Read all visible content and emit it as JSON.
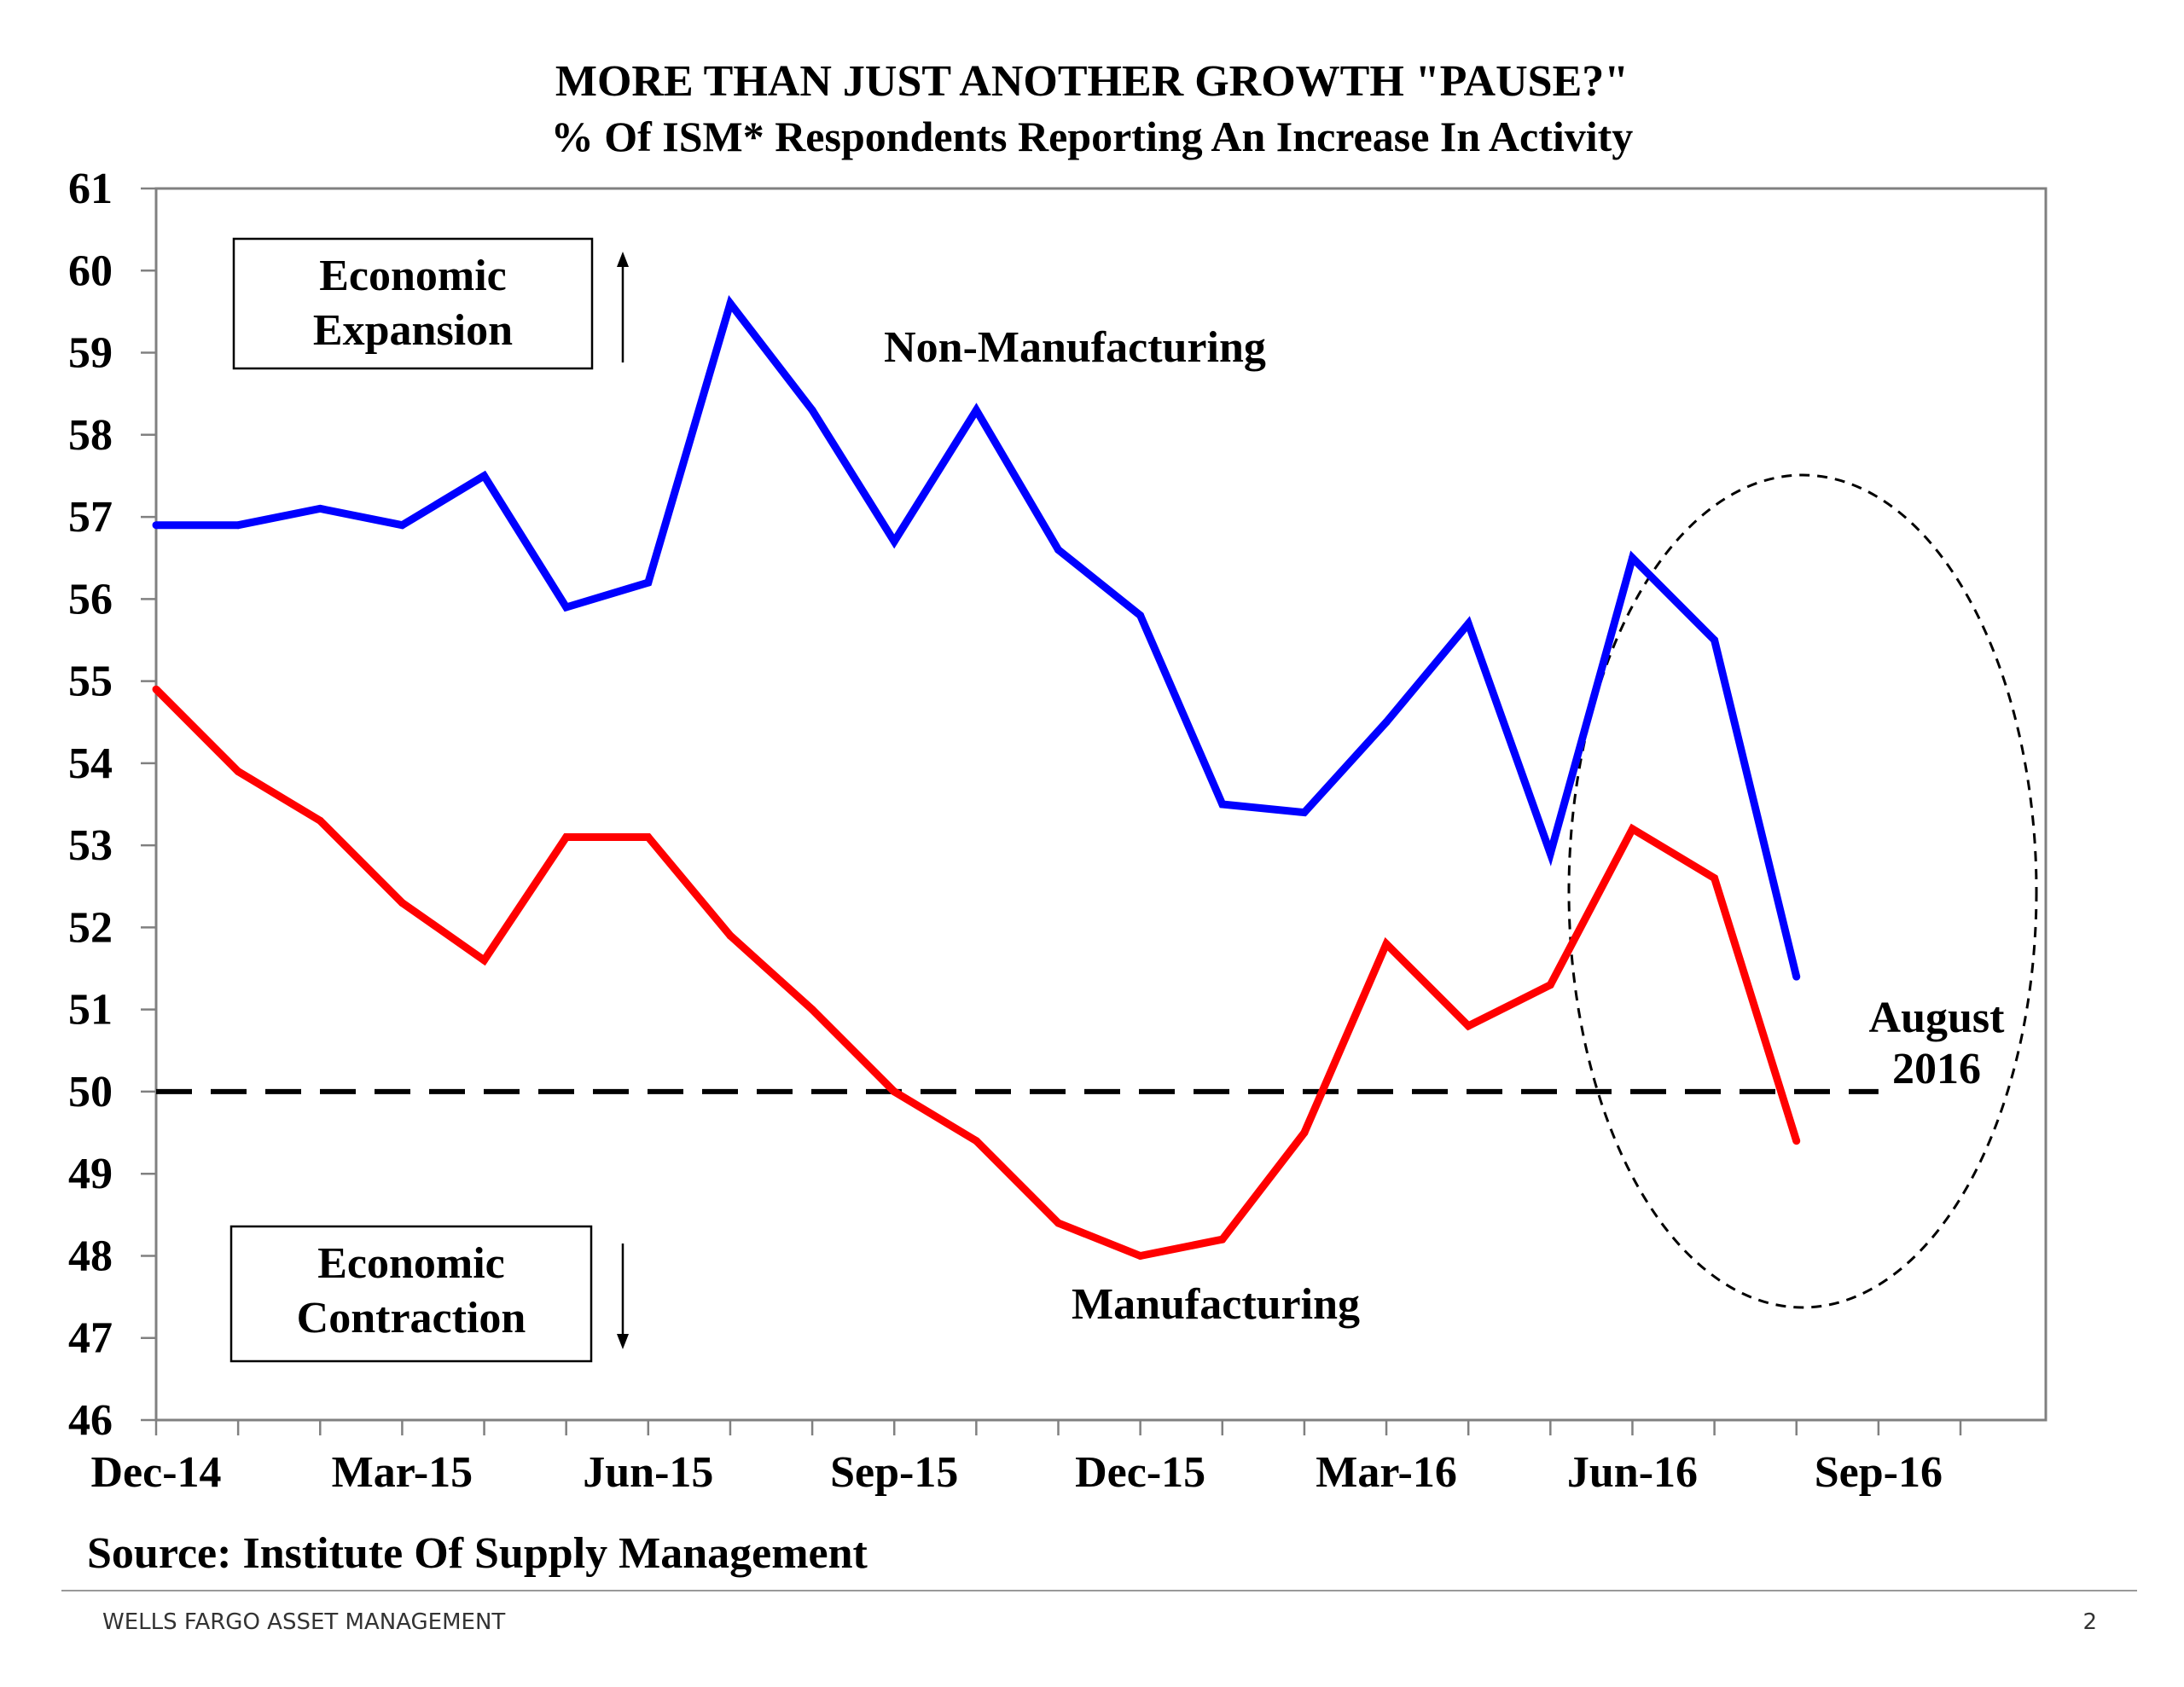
{
  "chart_data": {
    "type": "line",
    "title": "MORE THAN JUST ANOTHER GROWTH \"PAUSE?\"",
    "subtitle": "% Of ISM* Respondents Reporting An Increase In Activity",
    "xlabel": "",
    "ylabel": "",
    "ylim": [
      46,
      61
    ],
    "yticks": [
      "46",
      "47",
      "48",
      "49",
      "50",
      "51",
      "52",
      "53",
      "54",
      "55",
      "56",
      "57",
      "58",
      "59",
      "60",
      "61"
    ],
    "xtick_labels": [
      "Dec-14",
      "Mar-15",
      "Jun-15",
      "Sep-15",
      "Dec-15",
      "Mar-16",
      "Jun-16",
      "Sep-16"
    ],
    "x": [
      "Dec-14",
      "Jan-15",
      "Feb-15",
      "Mar-15",
      "Apr-15",
      "May-15",
      "Jun-15",
      "Jul-15",
      "Aug-15",
      "Sep-15",
      "Oct-15",
      "Nov-15",
      "Dec-15",
      "Jan-16",
      "Feb-16",
      "Mar-16",
      "Apr-16",
      "May-16",
      "Jun-16",
      "Jul-16",
      "Aug-16"
    ],
    "series": [
      {
        "name": "Non-Manufacturing",
        "color": "#0000ff",
        "values": [
          56.9,
          56.9,
          57.1,
          56.9,
          57.5,
          55.9,
          56.2,
          59.6,
          58.3,
          56.7,
          58.3,
          56.6,
          55.8,
          53.5,
          53.4,
          54.5,
          55.7,
          52.9,
          56.5,
          55.5,
          51.4
        ]
      },
      {
        "name": "Manufacturing",
        "color": "#ff0000",
        "values": [
          54.9,
          53.9,
          53.3,
          52.3,
          51.6,
          53.1,
          53.1,
          51.9,
          51.0,
          50.0,
          49.4,
          48.4,
          48.0,
          48.2,
          49.5,
          51.8,
          50.8,
          51.3,
          53.2,
          52.6,
          49.4
        ]
      }
    ],
    "reference_line": {
      "value": 50,
      "style": "dashed"
    },
    "annotations": {
      "expansion": [
        "Economic",
        "Expansion"
      ],
      "contraction": [
        "Economic",
        "Contraction"
      ],
      "non_manufacturing_label": "Non-Manufacturing",
      "manufacturing_label": "Manufacturing",
      "highlight": [
        "August",
        "2016"
      ]
    },
    "source": "Source:  Institute Of Supply Management"
  },
  "footer": {
    "brand": "WELLS FARGO ASSET MANAGEMENT",
    "page_number": "2"
  }
}
